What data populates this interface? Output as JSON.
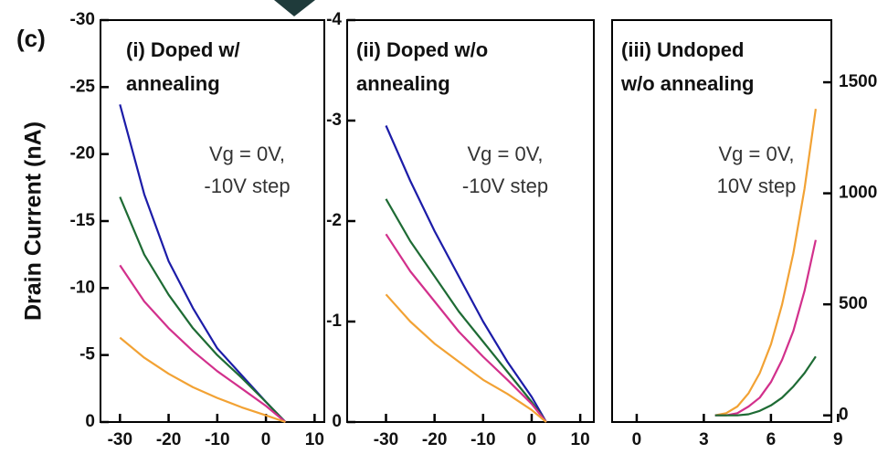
{
  "label": "(c)",
  "ylabel": "Drain Current (nA)",
  "chart_data": [
    {
      "type": "line",
      "title": [
        "(i) Doped w/",
        "annealing"
      ],
      "annotation": [
        "Vg = 0V,",
        "-10V step"
      ],
      "x": [
        -30,
        -25,
        -20,
        -15,
        -10,
        -5,
        0,
        4
      ],
      "series": [
        {
          "color": "#1c1ca8",
          "values": [
            -23.7,
            -17,
            -12,
            -8.5,
            -5.5,
            -3.5,
            -1.5,
            0
          ]
        },
        {
          "color": "#1e6b34",
          "values": [
            -16.8,
            -12.5,
            -9.5,
            -7,
            -5,
            -3.3,
            -1.5,
            0
          ]
        },
        {
          "color": "#d2308c",
          "values": [
            -11.7,
            -9,
            -7,
            -5.3,
            -3.8,
            -2.5,
            -1.2,
            0
          ]
        },
        {
          "color": "#f2a234",
          "values": [
            -6.3,
            -4.8,
            -3.6,
            -2.6,
            -1.8,
            -1.1,
            -0.5,
            0
          ]
        }
      ],
      "xlim": [
        -34,
        12
      ],
      "xticks": [
        -30,
        -20,
        -10,
        0,
        10
      ],
      "ylim": [
        0,
        -30
      ],
      "yticks": [
        0,
        -5,
        -10,
        -15,
        -20,
        -25,
        -30
      ],
      "y_axis_side": "left"
    },
    {
      "type": "line",
      "title": [
        "(ii) Doped w/o",
        "annealing"
      ],
      "annotation": [
        "Vg = 0V,",
        "-10V step"
      ],
      "x": [
        -30,
        -25,
        -20,
        -15,
        -10,
        -5,
        0,
        3
      ],
      "series": [
        {
          "color": "#1c1ca8",
          "values": [
            -2.95,
            -2.4,
            -1.9,
            -1.45,
            -1.0,
            -0.6,
            -0.25,
            0
          ]
        },
        {
          "color": "#1e6b34",
          "values": [
            -2.22,
            -1.8,
            -1.45,
            -1.1,
            -0.8,
            -0.5,
            -0.2,
            0
          ]
        },
        {
          "color": "#d2308c",
          "values": [
            -1.87,
            -1.5,
            -1.2,
            -0.9,
            -0.65,
            -0.42,
            -0.18,
            0
          ]
        },
        {
          "color": "#f2a234",
          "values": [
            -1.27,
            -1.0,
            -0.78,
            -0.6,
            -0.42,
            -0.28,
            -0.12,
            0
          ]
        }
      ],
      "xlim": [
        -38,
        12.8
      ],
      "xticks": [
        -30,
        -20,
        -10,
        0,
        10
      ],
      "ylim": [
        0,
        -4
      ],
      "yticks": [
        0,
        -1,
        -2,
        -3,
        -4
      ],
      "y_axis_side": "left"
    },
    {
      "type": "line",
      "title": [
        "(iii) Undoped",
        "w/o annealing"
      ],
      "annotation": [
        "Vg = 0V,",
        "10V step"
      ],
      "x": [
        3.5,
        4,
        4.5,
        5,
        5.5,
        6,
        6.5,
        7,
        7.5,
        8
      ],
      "series": [
        {
          "color": "#f2a234",
          "values": [
            0,
            10,
            40,
            100,
            190,
            320,
            500,
            730,
            1020,
            1380
          ]
        },
        {
          "color": "#d2308c",
          "values": [
            0,
            0,
            10,
            40,
            80,
            150,
            250,
            380,
            560,
            790
          ]
        },
        {
          "color": "#1e6b34",
          "values": [
            0,
            0,
            0,
            5,
            20,
            45,
            80,
            130,
            190,
            265
          ]
        }
      ],
      "xlim": [
        -1.1,
        8.7
      ],
      "xticks": [
        0,
        3,
        6,
        9
      ],
      "ylim": [
        -30,
        1780
      ],
      "yticks": [
        0,
        500,
        1000,
        1500
      ],
      "y_axis_side": "right"
    }
  ]
}
